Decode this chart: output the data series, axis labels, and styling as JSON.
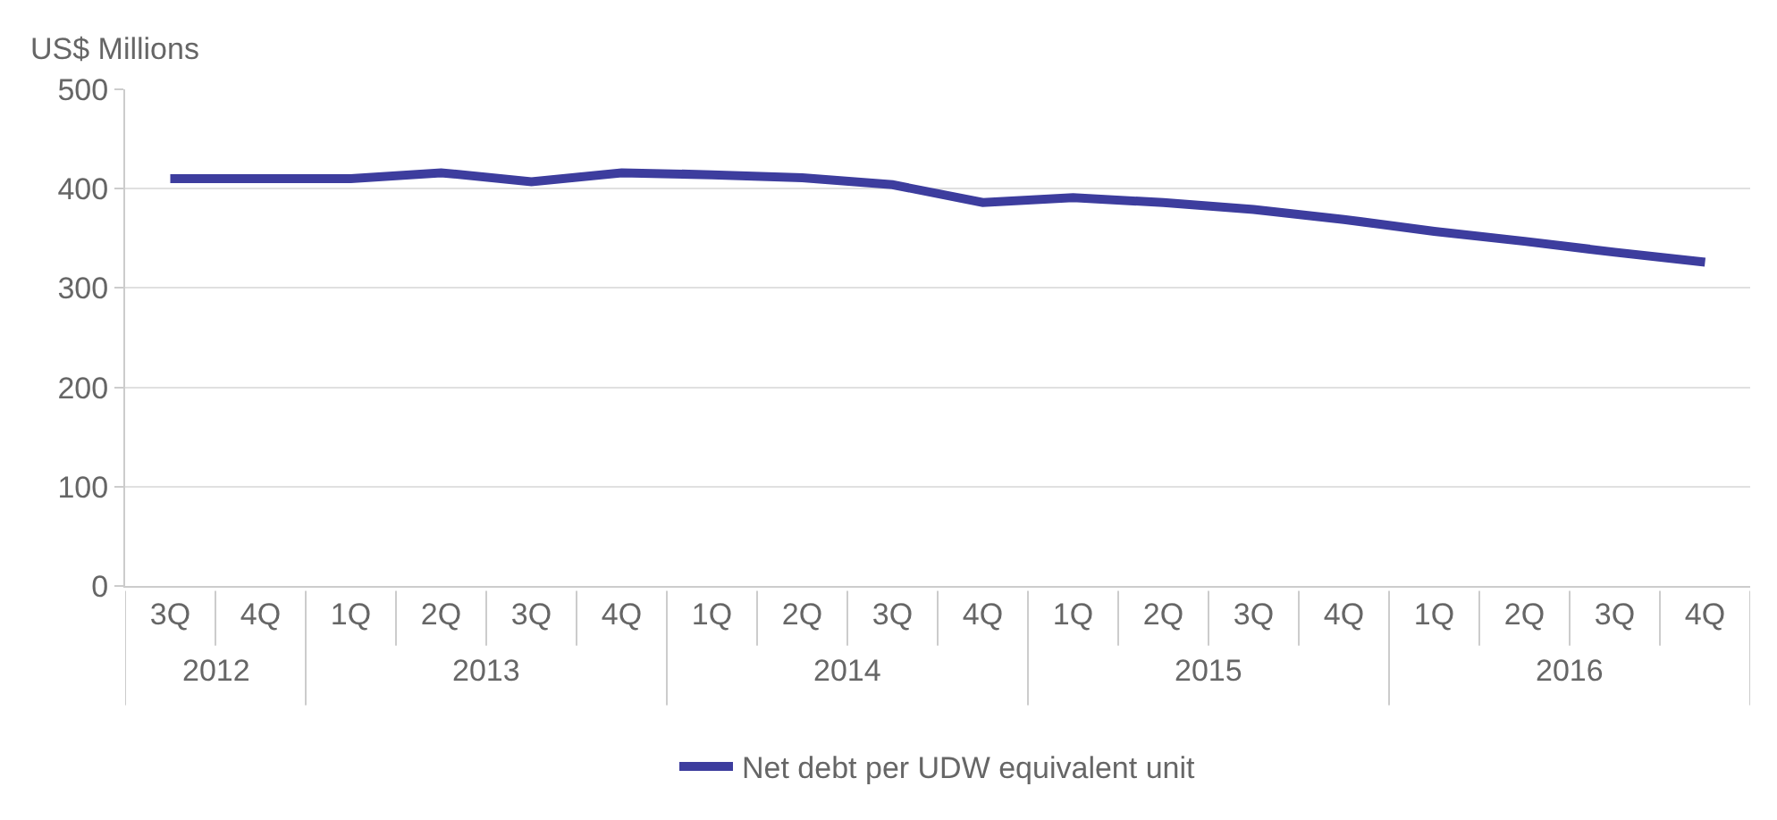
{
  "chart_data": {
    "type": "line",
    "ylabel": "US$ Millions",
    "categories": [
      "3Q",
      "4Q",
      "1Q",
      "2Q",
      "3Q",
      "4Q",
      "1Q",
      "2Q",
      "3Q",
      "4Q",
      "1Q",
      "2Q",
      "3Q",
      "4Q",
      "1Q",
      "2Q",
      "3Q",
      "4Q"
    ],
    "annotations": [
      "2012",
      "2013",
      "2014",
      "2015",
      "2016"
    ],
    "series": [
      {
        "name": "Net debt per UDW equivalent unit",
        "color": "#3d3d9e",
        "values": [
          410,
          410,
          410,
          416,
          407,
          416,
          414,
          411,
          404,
          386,
          391,
          386,
          379,
          369,
          357,
          347,
          336,
          326
        ]
      }
    ],
    "ylim": [
      0,
      500
    ],
    "yticks": [
      0,
      100,
      200,
      300,
      400,
      500
    ],
    "grid": "y",
    "legend": "bottom",
    "marker": "none",
    "line_style": "solid"
  }
}
